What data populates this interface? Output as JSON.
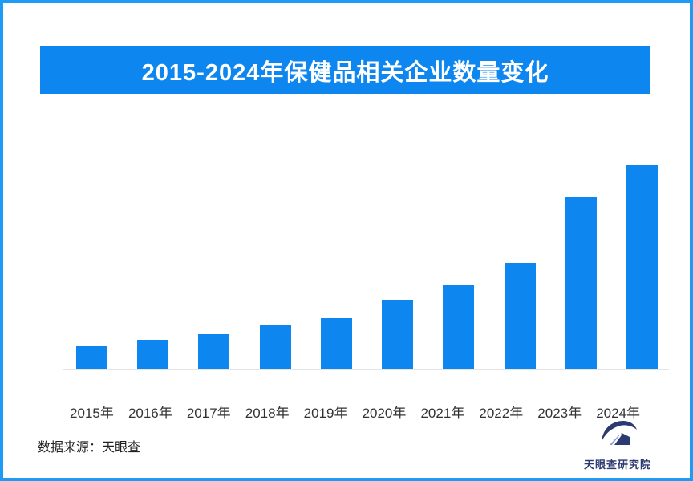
{
  "window": {
    "frame_border_color": "#1e9cf5",
    "background": "#ffffff"
  },
  "header": {
    "title": "2015-2024年保健品相关企业数量变化",
    "banner_color": "#0d86f0",
    "title_color": "#ffffff"
  },
  "chart_data": {
    "type": "bar",
    "title": "2015-2024年保健品相关企业数量变化",
    "categories": [
      "2015年",
      "2016年",
      "2017年",
      "2018年",
      "2019年",
      "2020年",
      "2021年",
      "2022年",
      "2023年",
      "2024年"
    ],
    "values": [
      29,
      36,
      43,
      54,
      63,
      86,
      105,
      132,
      214,
      254
    ],
    "value_scale_note": "no y-axis or data labels shown in image; values are relative bar heights estimated in pixels",
    "xlabel": "",
    "ylabel": "",
    "ylim": [
      0,
      260
    ],
    "grid": false,
    "legend": false,
    "bar_color": "#0d86f0",
    "axis_line_color": "#e4e4e4",
    "tick_label_color": "#333333"
  },
  "footer": {
    "source": "数据来源：天眼查",
    "brand_name": "天眼查研究院",
    "brand_color": "#2b3a70",
    "brand_accent_color": "#8ba0d0"
  }
}
